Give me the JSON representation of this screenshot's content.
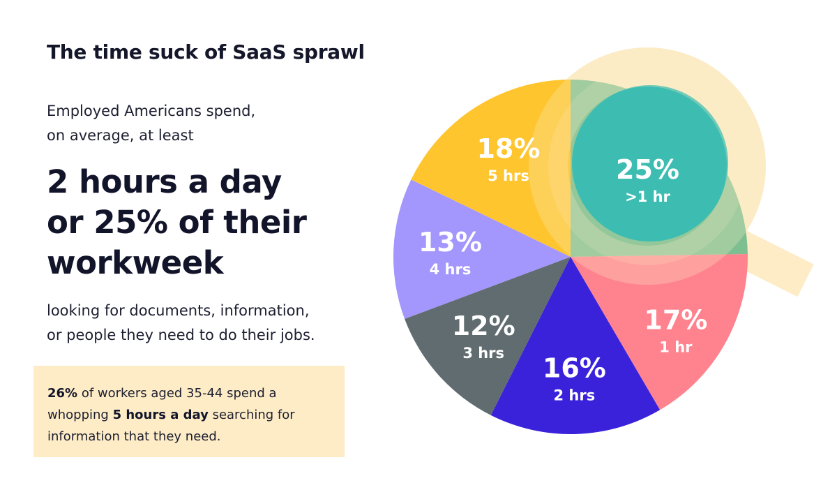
{
  "title": "The time suck of SaaS sprawl",
  "intro": {
    "line1": "Employed Americans spend,",
    "line2": "on average, at least"
  },
  "headline": {
    "line1": "2 hours a day",
    "line2": "or 25% of their",
    "line3": "workweek"
  },
  "outro": {
    "line1": "looking for documents, information,",
    "line2": "or people they need to do their jobs."
  },
  "callout": {
    "strong1": "26%",
    "text1": " of workers aged 35-44 spend a",
    "text2a": "whopping ",
    "strong2": "5 hours a day",
    "text2b": " searching for",
    "text3": "information that they need."
  },
  "colors": {
    "ring": "#fdecc6",
    "slice_lt1hr": "#7dbf91",
    "highlight_circle": "#3dbdb2",
    "slice_1hr": "#fe838f",
    "slice_2hrs": "#3a22db",
    "slice_3hrs": "#606c70",
    "slice_4hrs": "#a396fc",
    "slice_5hrs": "#fec52f"
  },
  "chart_data": {
    "type": "pie",
    "title": "",
    "slices": [
      {
        "value": 25,
        "label": "25%",
        "sublabel": ">1 hr",
        "color": "#7dbf91"
      },
      {
        "value": 17,
        "label": "17%",
        "sublabel": "1 hr",
        "color": "#fe838f"
      },
      {
        "value": 16,
        "label": "16%",
        "sublabel": "2 hrs",
        "color": "#3a22db"
      },
      {
        "value": 12,
        "label": "12%",
        "sublabel": "3 hrs",
        "color": "#606c70"
      },
      {
        "value": 13,
        "label": "13%",
        "sublabel": "4 hrs",
        "color": "#a396fc"
      },
      {
        "value": 18,
        "label": "18%",
        "sublabel": "5 hrs",
        "color": "#fec52f"
      }
    ]
  }
}
